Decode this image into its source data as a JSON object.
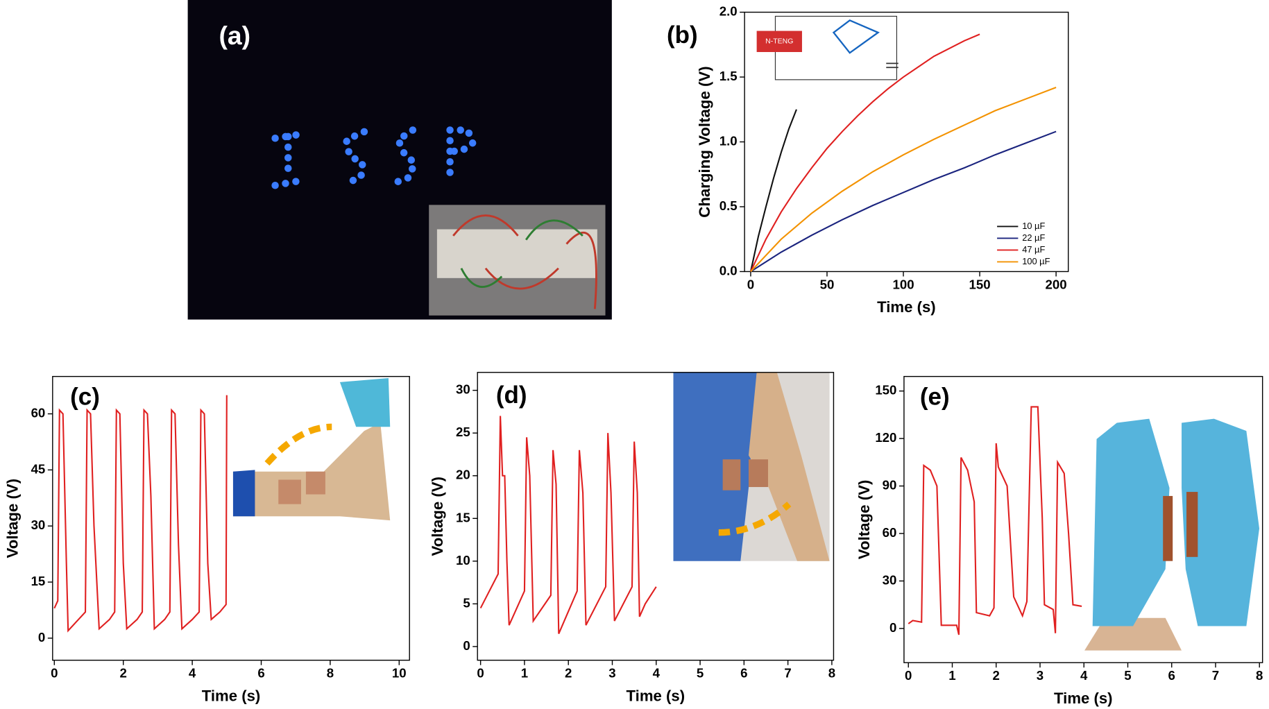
{
  "photo_panel": {
    "label": "(a)"
  },
  "chart_data": [
    {
      "type": "line",
      "panel_label": "(b)",
      "x_label": "Time (s)",
      "y_label": "Charging Voltage (V)",
      "annotations": [
        "N-TENG"
      ],
      "xlim": [
        -4,
        208
      ],
      "ylim": [
        0,
        2
      ],
      "xticks": [
        0,
        50,
        100,
        150,
        200
      ],
      "yticks": [
        {
          "value": 0,
          "label": "0.0"
        },
        0.5,
        {
          "value": 1,
          "label": "1.0"
        },
        1.5,
        {
          "value": 2,
          "label": "2.0"
        }
      ],
      "legend": "lower right",
      "series": [
        {
          "name": "10 µF",
          "color": "#111111",
          "x": [
            0,
            5,
            10,
            15,
            20,
            25,
            30
          ],
          "values": [
            0,
            0.27,
            0.5,
            0.72,
            0.92,
            1.1,
            1.25
          ]
        },
        {
          "name": "22 µF",
          "color": "#1a237e",
          "x": [
            0,
            20,
            40,
            60,
            80,
            100,
            120,
            140,
            160,
            180,
            200
          ],
          "values": [
            0,
            0.15,
            0.28,
            0.4,
            0.51,
            0.61,
            0.71,
            0.8,
            0.9,
            0.99,
            1.08
          ]
        },
        {
          "name": "47 µF",
          "color": "#e02020",
          "x": [
            0,
            10,
            20,
            30,
            40,
            50,
            60,
            70,
            80,
            90,
            100,
            110,
            120,
            130,
            140,
            150
          ],
          "values": [
            0,
            0.25,
            0.46,
            0.64,
            0.8,
            0.95,
            1.08,
            1.2,
            1.31,
            1.41,
            1.5,
            1.58,
            1.66,
            1.72,
            1.78,
            1.83
          ]
        },
        {
          "name": "100 µF",
          "color": "#f39200",
          "x": [
            0,
            20,
            40,
            60,
            80,
            100,
            120,
            140,
            160,
            180,
            200
          ],
          "values": [
            0,
            0.25,
            0.45,
            0.62,
            0.77,
            0.9,
            1.02,
            1.13,
            1.24,
            1.33,
            1.42
          ]
        }
      ]
    },
    {
      "type": "line",
      "panel_label": "(c)",
      "x_label": "Time (s)",
      "y_label": "Voltage (V)",
      "xlim": [
        -0.05,
        10.3
      ],
      "ylim": [
        -5.9,
        70
      ],
      "xticks": [
        0,
        2,
        4,
        6,
        8,
        10
      ],
      "yticks": [
        0,
        15,
        30,
        45,
        60
      ],
      "series": [
        {
          "color": "#e02020",
          "x": [
            0,
            0.1,
            0.15,
            0.25,
            0.35,
            0.4,
            0.7,
            0.9,
            0.95,
            1.05,
            1.15,
            1.3,
            1.6,
            1.75,
            1.8,
            1.9,
            2.0,
            2.1,
            2.4,
            2.55,
            2.6,
            2.7,
            2.8,
            2.9,
            3.2,
            3.35,
            3.4,
            3.5,
            3.6,
            3.7,
            4.0,
            4.2,
            4.25,
            4.35,
            4.45,
            4.55,
            4.8,
            4.98,
            5.0
          ],
          "values": [
            8,
            10,
            61,
            60,
            20,
            2,
            5,
            7,
            61,
            60,
            30,
            2.5,
            5,
            7,
            61,
            60,
            20,
            2.5,
            5,
            7,
            61,
            60,
            38,
            2.5,
            5,
            7,
            61,
            60,
            25,
            2.5,
            5,
            7,
            61,
            60,
            20,
            5,
            7,
            9,
            65
          ]
        }
      ]
    },
    {
      "type": "line",
      "panel_label": "(d)",
      "x_label": "Time (s)",
      "y_label": "Voltage (V)",
      "xlim": [
        -0.07,
        8.04
      ],
      "ylim": [
        -1.6,
        32.1
      ],
      "xticks": [
        0,
        1,
        2,
        3,
        4,
        5,
        6,
        7,
        8
      ],
      "yticks": [
        0,
        5,
        10,
        15,
        20,
        25,
        30
      ],
      "series": [
        {
          "color": "#e02020",
          "x": [
            0,
            0.4,
            0.45,
            0.5,
            0.55,
            0.6,
            0.65,
            1.0,
            1.05,
            1.12,
            1.2,
            1.6,
            1.65,
            1.72,
            1.78,
            2.2,
            2.25,
            2.33,
            2.4,
            2.85,
            2.9,
            2.97,
            3.05,
            3.45,
            3.5,
            3.57,
            3.62,
            3.75,
            4.0
          ],
          "values": [
            4.5,
            8.5,
            27,
            20,
            20,
            10,
            2.5,
            6.5,
            24.5,
            20,
            3,
            6,
            23,
            19,
            1.5,
            6.5,
            23,
            18,
            2.5,
            7,
            25,
            18,
            3,
            7,
            24,
            18,
            3.5,
            5,
            7
          ]
        }
      ]
    },
    {
      "type": "line",
      "panel_label": "(e)",
      "x_label": "Time (s)",
      "y_label": "Voltage (V)",
      "xlim": [
        -0.1,
        8.07
      ],
      "ylim": [
        -21.6,
        159.2
      ],
      "xticks": [
        0,
        1,
        2,
        3,
        4,
        5,
        6,
        7,
        8
      ],
      "yticks": [
        0,
        30,
        60,
        90,
        120,
        150
      ],
      "series": [
        {
          "color": "#e02020",
          "x": [
            0,
            0.1,
            0.3,
            0.35,
            0.5,
            0.65,
            0.75,
            1.1,
            1.15,
            1.2,
            1.35,
            1.5,
            1.55,
            1.85,
            1.95,
            2.0,
            2.05,
            2.25,
            2.4,
            2.6,
            2.7,
            2.8,
            2.95,
            3.05,
            3.1,
            3.3,
            3.35,
            3.4,
            3.55,
            3.65,
            3.75,
            3.95
          ],
          "values": [
            3,
            5,
            4,
            103,
            100,
            90,
            2,
            2,
            -4,
            108,
            100,
            80,
            10,
            8,
            13,
            117,
            102,
            90,
            20,
            8,
            17,
            140,
            140,
            70,
            15,
            12,
            -3,
            105,
            98,
            60,
            15,
            14
          ]
        }
      ]
    }
  ]
}
